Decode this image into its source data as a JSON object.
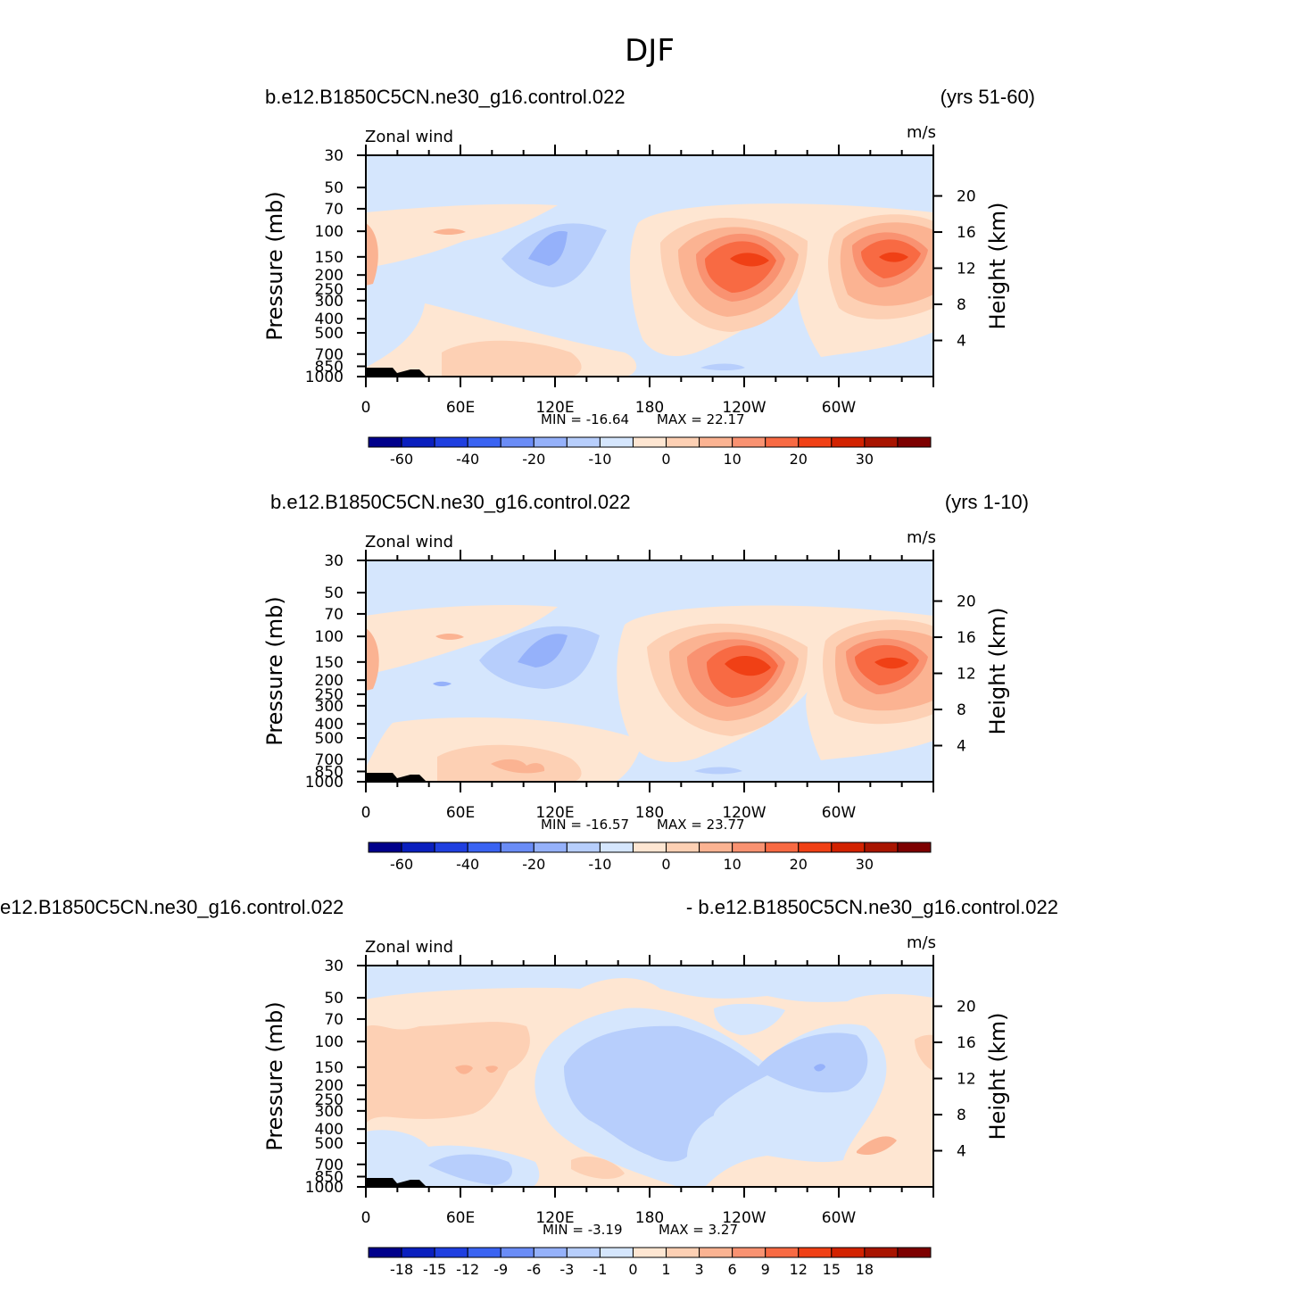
{
  "figure": {
    "title": "DJF"
  },
  "colors": {
    "cold": [
      "#00008b",
      "#0a1fbe",
      "#1f3fe0",
      "#3a63f2",
      "#6a8cf6",
      "#95b1fa",
      "#b7cefc",
      "#d5e6fd"
    ],
    "warm": [
      "#fee6d2",
      "#fdd0b4",
      "#fbb392",
      "#f99271",
      "#f86a43",
      "#f04015",
      "#d22200",
      "#a81400",
      "#7d0000"
    ],
    "topo": "#000000"
  },
  "chart_data": [
    {
      "type": "heatmap",
      "label_left": "b.e12.B1850C5CN.ne30_g16.control.022",
      "label_right": "(yrs 51-60)",
      "sublabel_left": "Zonal wind",
      "units": "m/s",
      "ylabel": "Pressure (mb)",
      "y2label": "Height (km)",
      "yticks": [
        "30",
        "50",
        "70",
        "100",
        "150",
        "200",
        "250",
        "300",
        "400",
        "500",
        "700",
        "850",
        "1000"
      ],
      "y2ticks": [
        "20",
        "16",
        "12",
        "8",
        "4"
      ],
      "xticks": [
        "0",
        "60E",
        "120E",
        "180",
        "120W",
        "60W"
      ],
      "min_label": "MIN = -16.64",
      "max_label": "MAX = 22.17",
      "min": -16.64,
      "max": 22.17,
      "colorbar_labels": [
        "-60",
        "-40",
        "-20",
        "-10",
        "0",
        "10",
        "20",
        "30"
      ]
    },
    {
      "type": "heatmap",
      "label_left": "b.e12.B1850C5CN.ne30_g16.control.022",
      "label_right": "(yrs 1-10)",
      "sublabel_left": "Zonal wind",
      "units": "m/s",
      "ylabel": "Pressure (mb)",
      "y2label": "Height (km)",
      "yticks": [
        "30",
        "50",
        "70",
        "100",
        "150",
        "200",
        "250",
        "300",
        "400",
        "500",
        "700",
        "850",
        "1000"
      ],
      "y2ticks": [
        "20",
        "16",
        "12",
        "8",
        "4"
      ],
      "xticks": [
        "0",
        "60E",
        "120E",
        "180",
        "120W",
        "60W"
      ],
      "min_label": "MIN = -16.57",
      "max_label": "MAX = 23.77",
      "min": -16.57,
      "max": 23.77,
      "colorbar_labels": [
        "-60",
        "-40",
        "-20",
        "-10",
        "0",
        "10",
        "20",
        "30"
      ]
    },
    {
      "type": "heatmap",
      "label_left": "e12.B1850C5CN.ne30_g16.control.022",
      "label_right": "- b.e12.B1850C5CN.ne30_g16.control.022",
      "sublabel_left": "Zonal wind",
      "units": "m/s",
      "ylabel": "Pressure (mb)",
      "y2label": "Height (km)",
      "yticks": [
        "30",
        "50",
        "70",
        "100",
        "150",
        "200",
        "250",
        "300",
        "400",
        "500",
        "700",
        "850",
        "1000"
      ],
      "y2ticks": [
        "20",
        "16",
        "12",
        "8",
        "4"
      ],
      "xticks": [
        "0",
        "60E",
        "120E",
        "180",
        "120W",
        "60W"
      ],
      "min_label": "MIN = -3.19",
      "max_label": "MAX = 3.27",
      "min": -3.19,
      "max": 3.27,
      "colorbar_labels": [
        "-18",
        "-15",
        "-12",
        "-9",
        "-6",
        "-3",
        "-1",
        "0",
        "1",
        "3",
        "6",
        "9",
        "12",
        "15",
        "18"
      ]
    }
  ]
}
